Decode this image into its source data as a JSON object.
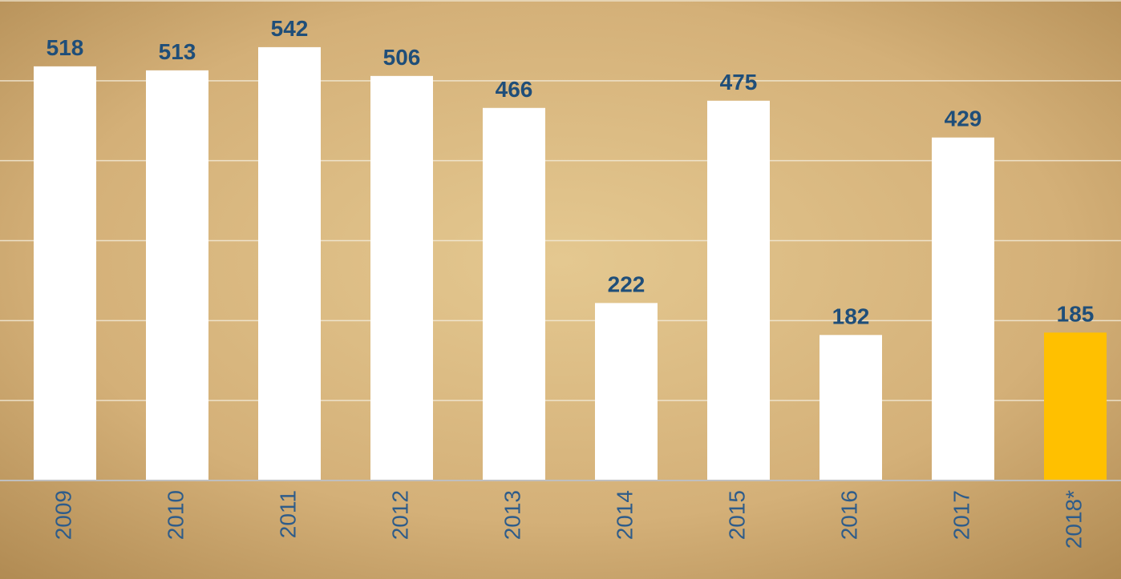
{
  "chart_data": {
    "type": "bar",
    "categories": [
      "2009",
      "2010",
      "2011",
      "2012",
      "2013",
      "2014",
      "2015",
      "2016",
      "2017",
      "2018*"
    ],
    "values": [
      518,
      513,
      542,
      506,
      466,
      222,
      475,
      182,
      429,
      185
    ],
    "colors": [
      "#ffffff",
      "#ffffff",
      "#ffffff",
      "#ffffff",
      "#ffffff",
      "#ffffff",
      "#ffffff",
      "#ffffff",
      "#ffffff",
      "#ffc000"
    ],
    "ylim": [
      0,
      600
    ],
    "yticks": [
      0,
      100,
      200,
      300,
      400,
      500,
      600
    ],
    "grid": true
  }
}
